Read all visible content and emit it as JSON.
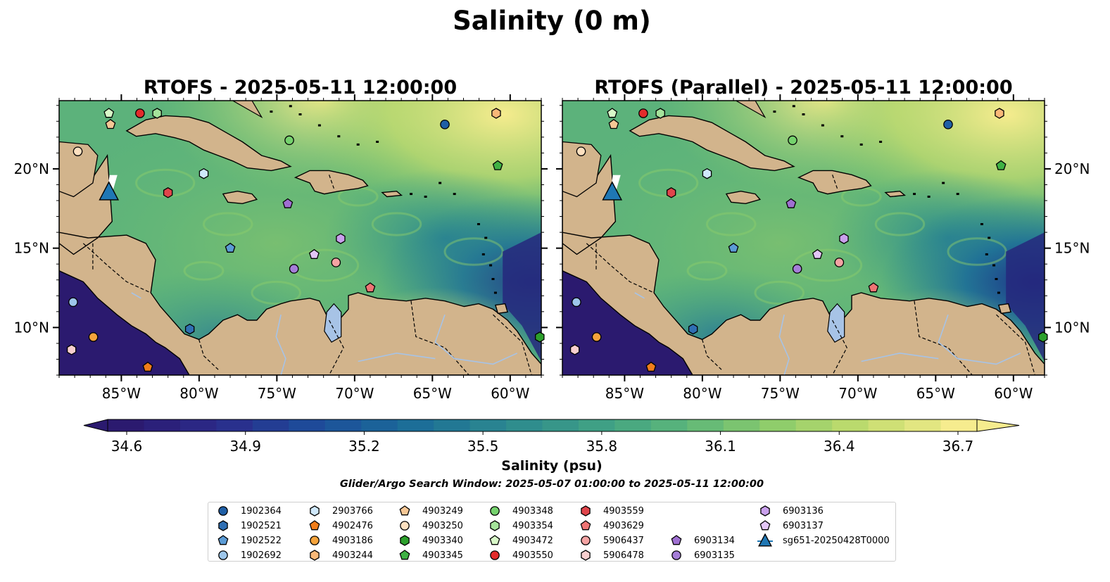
{
  "title": "Salinity (0 m)",
  "panels": [
    {
      "title": "RTOFS - 2025-05-11 12:00:00",
      "variant": "main"
    },
    {
      "title": "RTOFS (Parallel) - 2025-05-11 12:00:00",
      "variant": "parallel"
    }
  ],
  "map": {
    "lon_range": [
      -89,
      -58
    ],
    "lat_range": [
      7,
      24.3
    ],
    "lon_ticks": [
      {
        "value": -85,
        "label": "85°W"
      },
      {
        "value": -80,
        "label": "80°W"
      },
      {
        "value": -75,
        "label": "75°W"
      },
      {
        "value": -70,
        "label": "70°W"
      },
      {
        "value": -65,
        "label": "65°W"
      },
      {
        "value": -60,
        "label": "60°W"
      }
    ],
    "lat_ticks": [
      {
        "value": 20,
        "label": "20°N"
      },
      {
        "value": 15,
        "label": "15°N"
      },
      {
        "value": 10,
        "label": "10°N"
      }
    ],
    "colors": {
      "land": "#d2b48c",
      "ocean_low": "#2a1a6b",
      "ocean_high": "#f3ea8f"
    }
  },
  "colorbar": {
    "label": "Salinity (psu)",
    "ticks": [
      "34.6",
      "34.9",
      "35.2",
      "35.5",
      "35.8",
      "36.1",
      "36.4",
      "36.7"
    ],
    "min": 34.6,
    "max": 36.7,
    "colors": [
      "#2b1a6f",
      "#2b2a8a",
      "#1d4b9a",
      "#1a6a99",
      "#2a8590",
      "#3c9e86",
      "#5ab57a",
      "#8dcc6b",
      "#c4dd6e",
      "#f6ec8e"
    ]
  },
  "subtitle": "Glider/Argo Search Window: 2025-05-07 01:00:00 to 2025-05-11 12:00:00",
  "floats": [
    {
      "id": "1902364",
      "marker": "circle",
      "color": "#1f5fa6",
      "lon": -64.2,
      "lat": 22.8
    },
    {
      "id": "1902521",
      "marker": "hexagon",
      "color": "#2f6fb3",
      "lon": -80.6,
      "lat": 9.9
    },
    {
      "id": "1902522",
      "marker": "pentagon",
      "color": "#5b9bd5",
      "lon": -78.0,
      "lat": 15.0
    },
    {
      "id": "1902692",
      "marker": "circle",
      "color": "#9dc6ea",
      "lon": -88.1,
      "lat": 11.6
    },
    {
      "id": "2903766",
      "marker": "hexagon",
      "color": "#cfe8fb",
      "lon": -79.7,
      "lat": 19.7
    },
    {
      "id": "4902476",
      "marker": "pentagon",
      "color": "#f07d1a",
      "lon": -83.3,
      "lat": 7.5
    },
    {
      "id": "4903186",
      "marker": "circle",
      "color": "#f5a33b",
      "lon": -86.8,
      "lat": 9.4
    },
    {
      "id": "4903244",
      "marker": "hexagon",
      "color": "#f8b878",
      "lon": -60.9,
      "lat": 23.5
    },
    {
      "id": "4903249",
      "marker": "pentagon",
      "color": "#f6c795",
      "lon": -85.7,
      "lat": 22.8
    },
    {
      "id": "4903250",
      "marker": "circle",
      "color": "#fde0c0",
      "lon": -87.8,
      "lat": 21.1
    },
    {
      "id": "4903340",
      "marker": "hexagon",
      "color": "#2ca02c",
      "lon": -58.1,
      "lat": 9.4
    },
    {
      "id": "4903345",
      "marker": "pentagon",
      "color": "#3fb144",
      "lon": -60.8,
      "lat": 20.2
    },
    {
      "id": "4903348",
      "marker": "circle",
      "color": "#75d26d",
      "lon": -74.2,
      "lat": 21.8
    },
    {
      "id": "4903354",
      "marker": "hexagon",
      "color": "#a5e39b",
      "lon": -82.7,
      "lat": 23.5
    },
    {
      "id": "4903472",
      "marker": "pentagon",
      "color": "#d8f8c8",
      "lon": -85.8,
      "lat": 23.5
    },
    {
      "id": "4903550",
      "marker": "circle",
      "color": "#e32b2b",
      "lon": -83.8,
      "lat": 23.5
    },
    {
      "id": "4903559",
      "marker": "hexagon",
      "color": "#e0454b",
      "lon": -82.0,
      "lat": 18.5
    },
    {
      "id": "4903629",
      "marker": "pentagon",
      "color": "#ee7474",
      "lon": -69.0,
      "lat": 12.5
    },
    {
      "id": "5906437",
      "marker": "circle",
      "color": "#f4a3a3",
      "lon": -71.2,
      "lat": 14.1
    },
    {
      "id": "5906478",
      "marker": "hexagon",
      "color": "#f9cfcf",
      "lon": -88.2,
      "lat": 8.6
    },
    {
      "id": "6903134",
      "marker": "pentagon",
      "color": "#9f6fd1",
      "lon": -74.3,
      "lat": 17.8
    },
    {
      "id": "6903135",
      "marker": "circle",
      "color": "#a57ed8",
      "lon": -73.9,
      "lat": 13.7
    },
    {
      "id": "6903136",
      "marker": "hexagon",
      "color": "#c9a0ec",
      "lon": -70.9,
      "lat": 15.6
    },
    {
      "id": "6903137",
      "marker": "pentagon",
      "color": "#e3c6f6",
      "lon": -72.6,
      "lat": 14.6
    },
    {
      "id": "sg651-20250428T0000",
      "marker": "triangle",
      "color": "#1f77b4",
      "lon": -85.8,
      "lat": 18.5
    }
  ]
}
